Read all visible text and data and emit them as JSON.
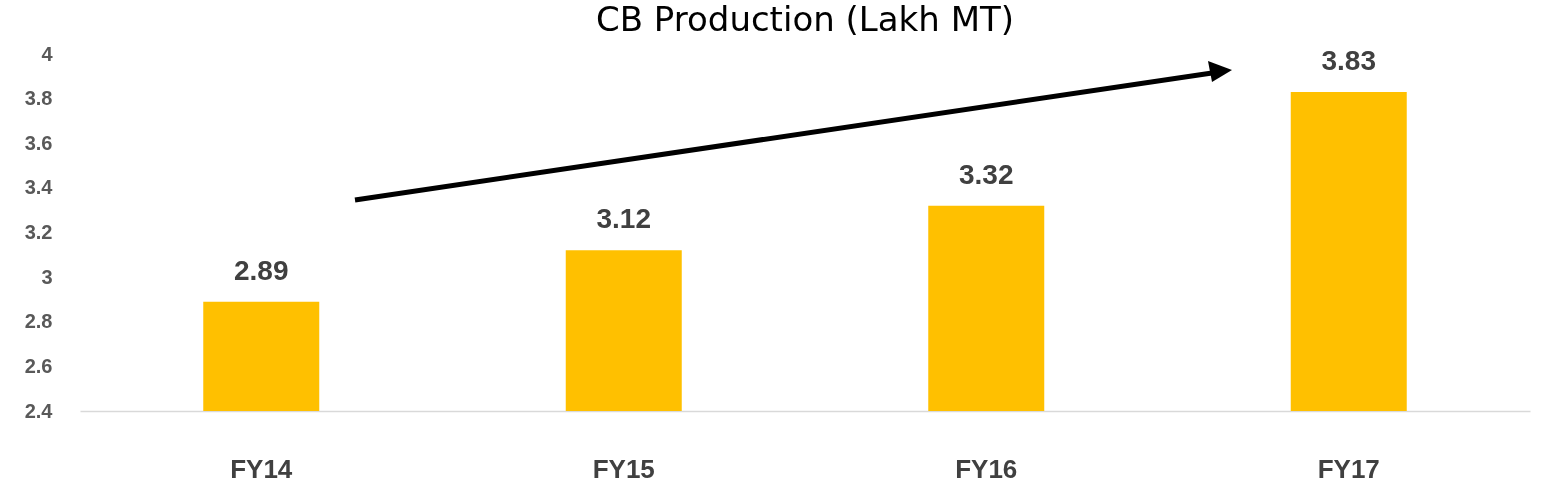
{
  "chart_data": {
    "type": "bar",
    "title": "CB Production (Lakh MT)",
    "categories": [
      "FY14",
      "FY15",
      "FY16",
      "FY17"
    ],
    "values": [
      2.89,
      3.12,
      3.32,
      3.83
    ],
    "color": "#ffc000",
    "ylim": [
      2.4,
      4
    ],
    "yticks": [
      2.4,
      2.6,
      2.8,
      3,
      3.2,
      3.4,
      3.6,
      3.8,
      4
    ],
    "data_labels": true
  }
}
